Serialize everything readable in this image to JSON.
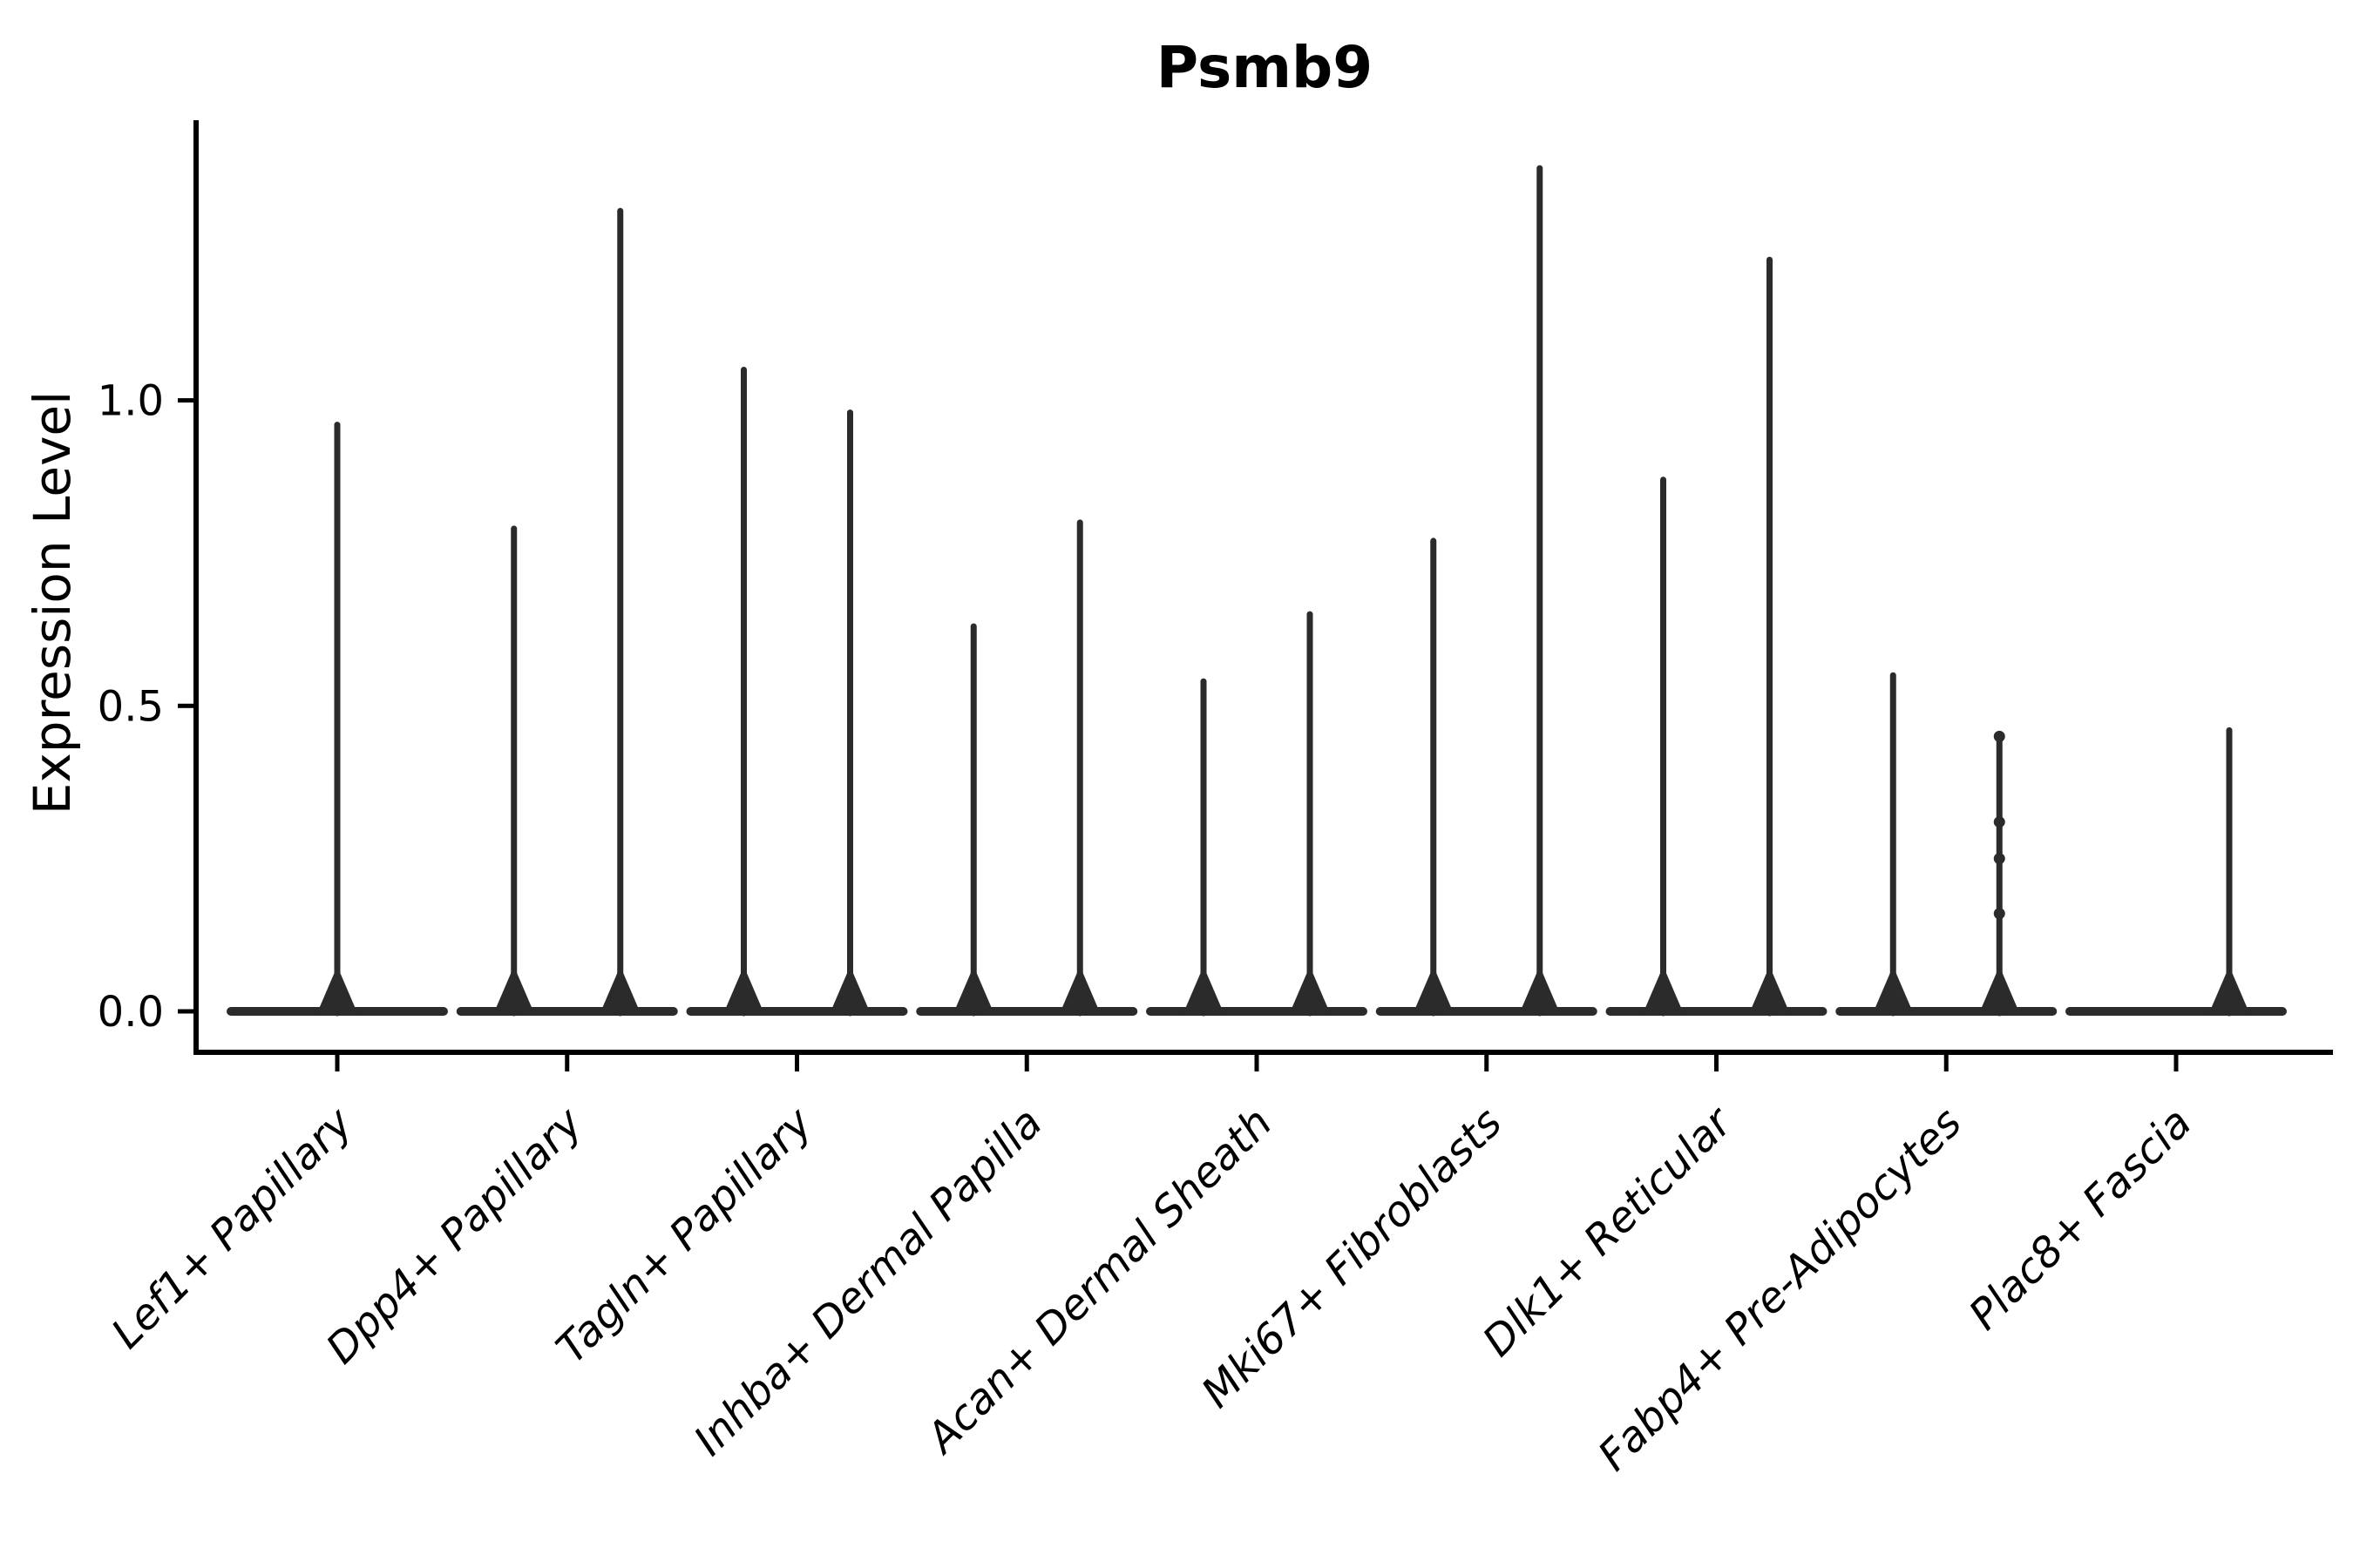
{
  "title": "Psmb9",
  "axes": {
    "ylabel": "Expression Level",
    "ytick_labels": [
      "0.0",
      "0.5",
      "1.0"
    ]
  },
  "colors": {
    "violin": "#2b2b2b",
    "axis": "#000000",
    "text": "#000000",
    "background": "#ffffff"
  },
  "chart_data": {
    "type": "violin",
    "title": "Psmb9",
    "xlabel": "",
    "ylabel": "Expression Level",
    "yticks": [
      0.0,
      0.5,
      1.0
    ],
    "ylim": [
      -0.07,
      1.46
    ],
    "grid": false,
    "legend": false,
    "description": "Violin plot of Psmb9 expression per cell type; density is concentrated at 0 (flat wide base) with a thin tail spike up to the max expression. Most categories contain two side-by-side sub-violins (left/right).",
    "categories": [
      "Lef1+ Papillary",
      "Dpp4+ Papillary",
      "Tagln+ Papillary",
      "Inhba+ Dermal Papilla",
      "Acan+ Dermal Sheath",
      "Mki67+ Fibroblasts",
      "Dlk1+ Reticular",
      "Fabp4+ Pre-Adipocytes",
      "Plac8+ Fascia"
    ],
    "series": [
      {
        "category": "Lef1+ Papillary",
        "violins": [
          {
            "side": "center",
            "max": 0.96
          }
        ]
      },
      {
        "category": "Dpp4+ Papillary",
        "violins": [
          {
            "side": "left",
            "max": 0.79
          },
          {
            "side": "right",
            "max": 1.31
          }
        ]
      },
      {
        "category": "Tagln+ Papillary",
        "violins": [
          {
            "side": "left",
            "max": 1.05
          },
          {
            "side": "right",
            "max": 0.98
          }
        ]
      },
      {
        "category": "Inhba+ Dermal Papilla",
        "violins": [
          {
            "side": "left",
            "max": 0.63
          },
          {
            "side": "right",
            "max": 0.8
          }
        ]
      },
      {
        "category": "Acan+ Dermal Sheath",
        "violins": [
          {
            "side": "left",
            "max": 0.54
          },
          {
            "side": "right",
            "max": 0.65
          }
        ]
      },
      {
        "category": "Mki67+ Fibroblasts",
        "violins": [
          {
            "side": "left",
            "max": 0.77
          },
          {
            "side": "right",
            "max": 1.38
          }
        ]
      },
      {
        "category": "Dlk1+ Reticular",
        "violins": [
          {
            "side": "left",
            "max": 0.87
          },
          {
            "side": "right",
            "max": 1.23
          }
        ]
      },
      {
        "category": "Fabp4+ Pre-Adipocytes",
        "violins": [
          {
            "side": "left",
            "max": 0.55
          },
          {
            "side": "right",
            "max": 0.45,
            "dots": [
              0.45,
              0.31,
              0.25,
              0.16
            ]
          }
        ]
      },
      {
        "category": "Plac8+ Fascia",
        "violins": [
          {
            "side": "right",
            "max": 0.46
          }
        ]
      }
    ]
  }
}
